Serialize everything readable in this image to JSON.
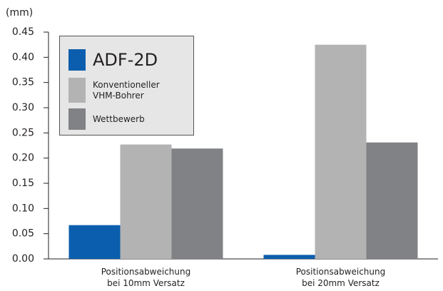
{
  "chart_data": {
    "type": "bar",
    "y_label": "(mm)",
    "categories": [
      "Positionsabweichung\nbei 10mm Versatz",
      "Positionsabweichung\nbei 20mm Versatz"
    ],
    "series": [
      {
        "name": "ADF-2D",
        "color": "#0b5ead",
        "values": [
          0.067,
          0.008
        ]
      },
      {
        "name": "Konventioneller\nVHM-Bohrer",
        "color": "#b3b3b3",
        "values": [
          0.227,
          0.425
        ]
      },
      {
        "name": "Wettbewerb",
        "color": "#808285",
        "values": [
          0.219,
          0.231
        ]
      }
    ],
    "ylim": [
      0,
      0.45
    ],
    "yticks": [
      {
        "value": 0,
        "label": "0.00"
      },
      {
        "value": 0.05,
        "label": "0.05"
      },
      {
        "value": 0.1,
        "label": "0.10"
      },
      {
        "value": 0.15,
        "label": "0.15"
      },
      {
        "value": 0.2,
        "label": "0.20"
      },
      {
        "value": 0.25,
        "label": "0.25"
      },
      {
        "value": 0.3,
        "label": "0.30"
      },
      {
        "value": 0.35,
        "label": "0.35"
      },
      {
        "value": 0.4,
        "label": "0.40"
      },
      {
        "value": 0.45,
        "label": "0.45"
      }
    ],
    "grid": false,
    "legend": "upper left"
  }
}
